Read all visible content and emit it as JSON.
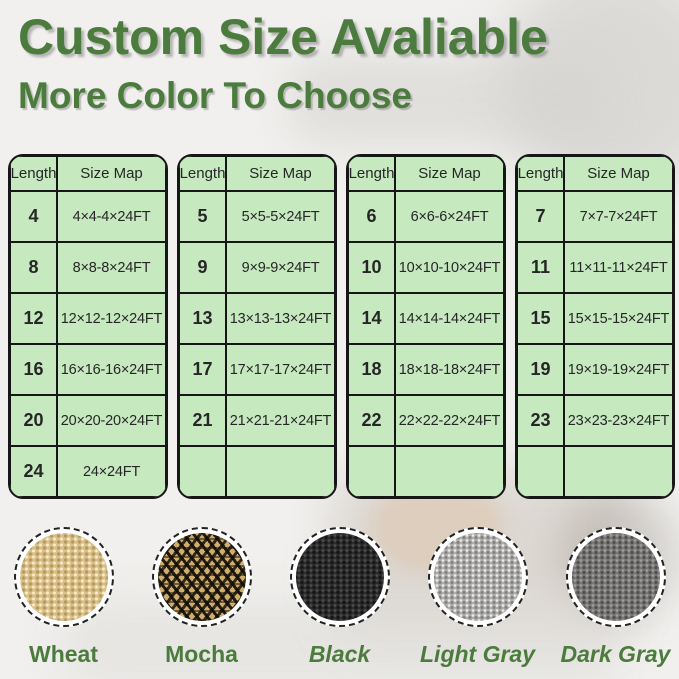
{
  "header": {
    "title": "Custom Size Avaliable",
    "subtitle": "More Color To Choose"
  },
  "size_tables": [
    {
      "columns": [
        "Length",
        "Size Map"
      ],
      "rows": [
        [
          "4",
          "4×4-4×24FT"
        ],
        [
          "8",
          "8×8-8×24FT"
        ],
        [
          "12",
          "12×12-12×24FT"
        ],
        [
          "16",
          "16×16-16×24FT"
        ],
        [
          "20",
          "20×20-20×24FT"
        ],
        [
          "24",
          "24×24FT"
        ]
      ]
    },
    {
      "columns": [
        "Length",
        "Size Map"
      ],
      "rows": [
        [
          "5",
          "5×5-5×24FT"
        ],
        [
          "9",
          "9×9-9×24FT"
        ],
        [
          "13",
          "13×13-13×24FT"
        ],
        [
          "17",
          "17×17-17×24FT"
        ],
        [
          "21",
          "21×21-21×24FT"
        ],
        [
          "",
          ""
        ]
      ]
    },
    {
      "columns": [
        "Length",
        "Size Map"
      ],
      "rows": [
        [
          "6",
          "6×6-6×24FT"
        ],
        [
          "10",
          "10×10-10×24FT"
        ],
        [
          "14",
          "14×14-14×24FT"
        ],
        [
          "18",
          "18×18-18×24FT"
        ],
        [
          "22",
          "22×22-22×24FT"
        ],
        [
          "",
          ""
        ]
      ]
    },
    {
      "columns": [
        "Length",
        "Size Map"
      ],
      "rows": [
        [
          "7",
          "7×7-7×24FT"
        ],
        [
          "11",
          "11×11-11×24FT"
        ],
        [
          "15",
          "15×15-15×24FT"
        ],
        [
          "19",
          "19×19-19×24FT"
        ],
        [
          "23",
          "23×23-23×24FT"
        ],
        [
          "",
          ""
        ]
      ]
    }
  ],
  "swatches": [
    {
      "label": "Wheat",
      "kind": "wheat",
      "italic": false,
      "base_color": "#d9c08a"
    },
    {
      "label": "Mocha",
      "kind": "mocha",
      "italic": false,
      "base_color": "#cfae6d"
    },
    {
      "label": "Black",
      "kind": "black",
      "italic": true,
      "base_color": "#2c2c2c"
    },
    {
      "label": "Light Gray",
      "kind": "light-gray",
      "italic": true,
      "base_color": "#aeadab"
    },
    {
      "label": "Dark Gray",
      "kind": "dark-gray",
      "italic": true,
      "base_color": "#787775"
    }
  ],
  "colors": {
    "title_green": "#4b7b3d",
    "table_fill": "#c6e9c0",
    "table_border": "#161616",
    "table_text": "#262626",
    "background": "#f1f0ee"
  }
}
